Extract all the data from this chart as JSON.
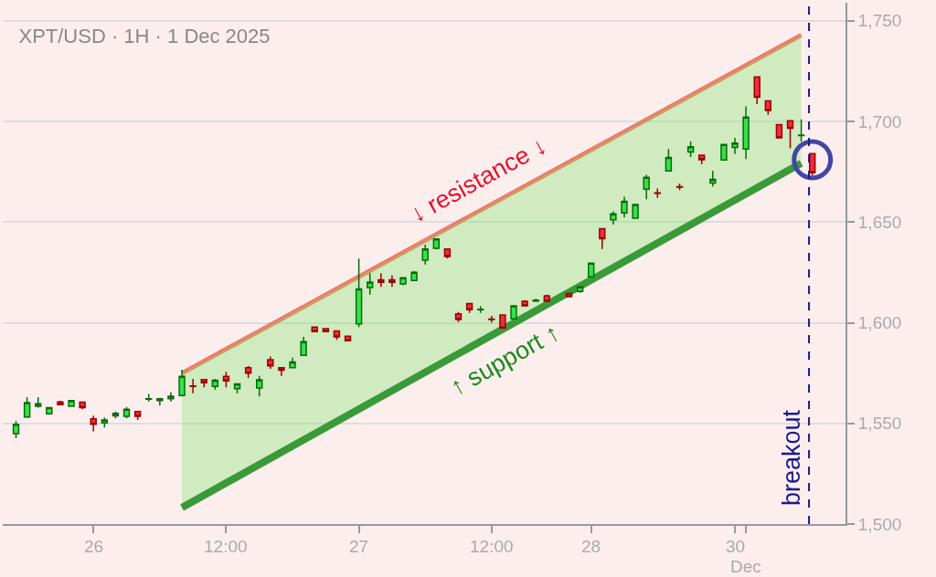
{
  "chart_data": {
    "type": "candlestick",
    "title": "XPT/USD · 1H · 1 Dec 2025",
    "categories": [
      null,
      null,
      null,
      null,
      null,
      null,
      null,
      "26",
      null,
      null,
      null,
      null,
      null,
      null,
      null,
      null,
      null,
      null,
      null,
      "12:00",
      null,
      null,
      null,
      null,
      null,
      null,
      null,
      null,
      null,
      null,
      null,
      "27",
      null,
      null,
      null,
      null,
      null,
      null,
      null,
      null,
      null,
      null,
      null,
      "12:00",
      null,
      null,
      null,
      null,
      null,
      null,
      null,
      null,
      "28",
      null,
      null,
      null,
      null,
      null,
      null,
      null,
      null,
      null,
      null,
      null,
      null,
      "30",
      "Dec",
      null,
      null,
      null,
      null,
      null,
      null
    ],
    "ohlc": [
      [
        1544.9,
        1551.3,
        1542.6,
        1549.5
      ],
      [
        1553.2,
        1563.1,
        1552.7,
        1560.3
      ],
      [
        1558.5,
        1563.1,
        1557.8,
        1559.8
      ],
      [
        1554.8,
        1558.2,
        1554.8,
        1557.8
      ],
      [
        1560.7,
        1561.2,
        1559.3,
        1559.3
      ],
      [
        1558.5,
        1561.3,
        1558.5,
        1561.3
      ],
      [
        1560.5,
        1560.9,
        1557.0,
        1557.8
      ],
      [
        1552.3,
        1553.9,
        1546.0,
        1549.5
      ],
      [
        1550.2,
        1552.9,
        1548.0,
        1551.7
      ],
      [
        1553.7,
        1555.9,
        1552.5,
        1555.0
      ],
      [
        1553.5,
        1558.2,
        1552.5,
        1557.0
      ],
      [
        1555.9,
        1556.2,
        1551.7,
        1553.5
      ],
      [
        1562.0,
        1564.6,
        1560.8,
        1562.3
      ],
      [
        1561.3,
        1562.6,
        1558.8,
        1562.3
      ],
      [
        1562.3,
        1565.6,
        1560.8,
        1563.5
      ],
      [
        1563.8,
        1576.7,
        1563.4,
        1573.4
      ],
      [
        1568.6,
        1572.1,
        1565.0,
        1568.4
      ],
      [
        1571.8,
        1571.8,
        1567.9,
        1570.2
      ],
      [
        1568.4,
        1572.1,
        1566.8,
        1571.4
      ],
      [
        1573.4,
        1575.6,
        1567.9,
        1571.1
      ],
      [
        1567.3,
        1569.6,
        1565.0,
        1569.6
      ],
      [
        1577.7,
        1578.6,
        1572.6,
        1575.0
      ],
      [
        1567.6,
        1573.6,
        1563.4,
        1571.7
      ],
      [
        1581.7,
        1583.2,
        1577.1,
        1578.6
      ],
      [
        1577.7,
        1577.9,
        1573.6,
        1576.4
      ],
      [
        1577.7,
        1582.7,
        1577.7,
        1580.5
      ],
      [
        1583.8,
        1593.0,
        1583.5,
        1590.6
      ],
      [
        1597.9,
        1598.1,
        1595.2,
        1595.6
      ],
      [
        1597.1,
        1597.3,
        1595.6,
        1595.6
      ],
      [
        1595.9,
        1596.1,
        1591.5,
        1593.0
      ],
      [
        1593.3,
        1593.5,
        1591.1,
        1591.1
      ],
      [
        1599.4,
        1631.9,
        1597.9,
        1616.8
      ],
      [
        1617.5,
        1624.6,
        1614.0,
        1620.2
      ],
      [
        1621.3,
        1624.6,
        1617.8,
        1620.1
      ],
      [
        1621.3,
        1623.6,
        1617.8,
        1620.1
      ],
      [
        1619.3,
        1622.4,
        1618.6,
        1622.4
      ],
      [
        1621.0,
        1625.8,
        1620.6,
        1625.1
      ],
      [
        1631.1,
        1638.8,
        1628.9,
        1636.7
      ],
      [
        1637.0,
        1642.0,
        1636.5,
        1641.6
      ],
      [
        1636.6,
        1636.6,
        1632.0,
        1632.9
      ],
      [
        1604.4,
        1605.4,
        1600.4,
        1601.6
      ],
      [
        1609.5,
        1609.5,
        1604.9,
        1606.5
      ],
      [
        1606.5,
        1608.3,
        1604.9,
        1606.7
      ],
      [
        1601.8,
        1603.4,
        1600.0,
        1601.6
      ],
      [
        1603.9,
        1604.2,
        1597.4,
        1597.4
      ],
      [
        1601.9,
        1608.4,
        1601.9,
        1608.4
      ],
      [
        1610.7,
        1611.2,
        1608.4,
        1608.4
      ],
      [
        1610.8,
        1611.9,
        1610.3,
        1611.2
      ],
      [
        1613.4,
        1614.0,
        1610.7,
        1610.7
      ],
      null,
      [
        1614.5,
        1614.5,
        1613.0,
        1613.0
      ],
      [
        1615.6,
        1618.2,
        1614.9,
        1617.8
      ],
      [
        1622.8,
        1629.8,
        1622.8,
        1629.6
      ],
      [
        1646.7,
        1646.7,
        1636.7,
        1641.7
      ],
      [
        1651.2,
        1655.3,
        1648.8,
        1654.1
      ],
      [
        1654.6,
        1662.6,
        1652.3,
        1660.3
      ],
      [
        1652.0,
        1658.8,
        1652.0,
        1658.8
      ],
      [
        1666.4,
        1673.5,
        1661.4,
        1672.3
      ],
      [
        1664.5,
        1666.7,
        1662.1,
        1664.3
      ],
      [
        1675.4,
        1686.3,
        1675.4,
        1682.1
      ],
      [
        1667.6,
        1669.2,
        1665.9,
        1667.4
      ],
      [
        1684.8,
        1690.0,
        1682.3,
        1687.5
      ],
      [
        1683.3,
        1683.5,
        1678.8,
        1681.0
      ],
      [
        1669.4,
        1675.4,
        1667.7,
        1671.2
      ],
      [
        1680.9,
        1688.8,
        1680.9,
        1688.6
      ],
      [
        1687.1,
        1691.9,
        1683.8,
        1689.3
      ],
      [
        1686.3,
        1707.5,
        1681.3,
        1702.2
      ],
      [
        1722.2,
        1722.2,
        1708.6,
        1712.0
      ],
      [
        1710.2,
        1710.2,
        1703.3,
        1705.5
      ],
      [
        1698.4,
        1698.4,
        1691.9,
        1691.9
      ],
      [
        1700.4,
        1700.4,
        1686.6,
        1696.6
      ],
      [
        1693.0,
        1701.0,
        1690.1,
        1693.2
      ],
      [
        1684.1,
        1684.1,
        1673.0,
        1674.5
      ]
    ],
    "series": [
      {
        "type": "line",
        "values": [
          null,
          null,
          null,
          null,
          null,
          null,
          null,
          null,
          null,
          null,
          null,
          null,
          null,
          null,
          null,
          1574.9,
          null,
          null,
          null,
          null,
          null,
          null,
          null,
          null,
          null,
          null,
          null,
          null,
          null,
          null,
          null,
          null,
          null,
          null,
          null,
          null,
          null,
          null,
          null,
          null,
          null,
          null,
          null,
          null,
          null,
          null,
          null,
          null,
          null,
          null,
          null,
          null,
          null,
          null,
          null,
          null,
          null,
          null,
          null,
          null,
          null,
          null,
          null,
          null,
          null,
          null,
          null,
          null,
          null,
          null,
          null,
          1742.9,
          null
        ],
        "color": "#f07a6a"
      },
      {
        "type": "line",
        "values": [
          null,
          null,
          null,
          null,
          null,
          null,
          null,
          null,
          null,
          null,
          null,
          null,
          null,
          null,
          null,
          1508.2,
          null,
          null,
          null,
          null,
          null,
          null,
          null,
          null,
          null,
          null,
          null,
          null,
          null,
          null,
          null,
          null,
          null,
          null,
          null,
          null,
          null,
          null,
          null,
          null,
          null,
          null,
          null,
          null,
          null,
          null,
          null,
          null,
          null,
          null,
          null,
          null,
          null,
          null,
          null,
          null,
          null,
          null,
          null,
          null,
          null,
          null,
          null,
          null,
          null,
          null,
          null,
          null,
          null,
          null,
          null,
          1679.3,
          null
        ],
        "color": "#3a9a3a",
        "lower": [
          null,
          null,
          null,
          null,
          null,
          null,
          null,
          null,
          null,
          null,
          null,
          null,
          null,
          null,
          null,
          1508.2,
          null,
          null,
          null,
          null,
          null,
          null,
          null,
          null,
          null,
          null,
          null,
          null,
          null,
          null,
          null,
          null,
          null,
          null,
          null,
          null,
          null,
          null,
          null,
          null,
          null,
          null,
          null,
          null,
          null,
          null,
          null,
          null,
          null,
          null,
          null,
          null,
          null,
          null,
          null,
          null,
          null,
          null,
          null,
          null,
          null,
          null,
          null,
          null,
          null,
          null,
          null,
          null,
          null,
          null,
          null,
          1679.3,
          null
        ],
        "upper": [
          null,
          null,
          null,
          null,
          null,
          null,
          null,
          null,
          null,
          null,
          null,
          null,
          null,
          null,
          null,
          1574.9,
          null,
          null,
          null,
          null,
          null,
          null,
          null,
          null,
          null,
          null,
          null,
          null,
          null,
          null,
          null,
          null,
          null,
          null,
          null,
          null,
          null,
          null,
          null,
          null,
          null,
          null,
          null,
          null,
          null,
          null,
          null,
          null,
          null,
          null,
          null,
          null,
          null,
          null,
          null,
          null,
          null,
          null,
          null,
          null,
          null,
          null,
          null,
          null,
          null,
          null,
          null,
          null,
          null,
          null,
          null,
          1742.9,
          null
        ]
      },
      {
        "type": "scatter",
        "values": [
          null,
          null,
          null,
          null,
          null,
          null,
          null,
          null,
          null,
          null,
          null,
          null,
          null,
          null,
          null,
          null,
          null,
          null,
          null,
          null,
          null,
          null,
          null,
          null,
          null,
          null,
          null,
          null,
          null,
          null,
          null,
          null,
          null,
          null,
          null,
          null,
          null,
          null,
          null,
          null,
          null,
          null,
          null,
          null,
          null,
          null,
          null,
          null,
          null,
          null,
          null,
          null,
          null,
          null,
          null,
          null,
          null,
          null,
          null,
          null,
          null,
          null,
          null,
          null,
          null,
          null,
          null,
          null,
          null,
          null,
          null,
          null,
          1681
        ],
        "color": "#4545a5",
        "marker": "circle"
      }
    ],
    "annotations": [
      "↓ resistance ↓",
      "↑ support ↑",
      "breakout"
    ],
    "ylim": [
      1500,
      1759
    ],
    "yticks": [
      {
        "value": 1500,
        "label": "1,500"
      },
      {
        "value": 1550,
        "label": "1,550"
      },
      {
        "value": 1600,
        "label": "1,600"
      },
      {
        "value": 1650,
        "label": "1,650"
      },
      {
        "value": 1700,
        "label": "1,700"
      },
      {
        "value": 1750,
        "label": "1,750"
      }
    ],
    "grid": "y"
  }
}
